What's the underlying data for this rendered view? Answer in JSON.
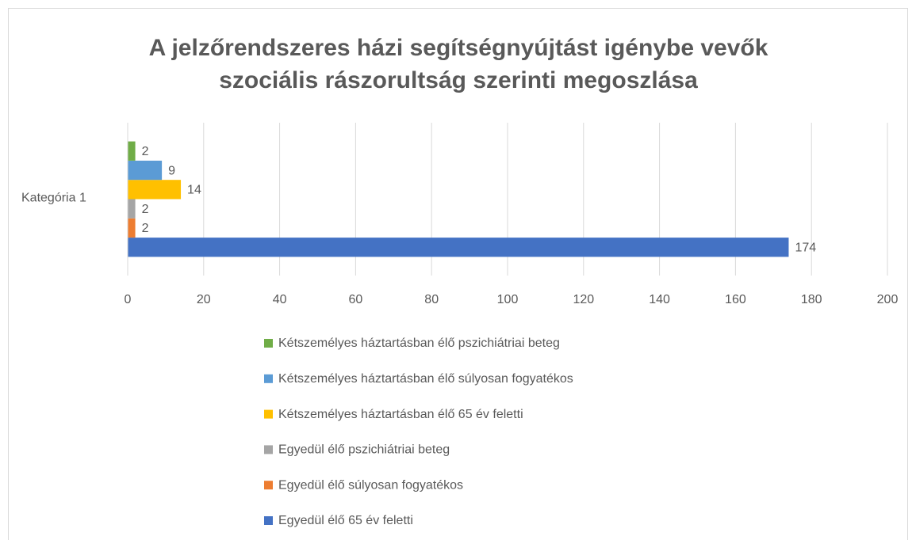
{
  "chart_data": {
    "type": "barh",
    "title": [
      "A jelzőrendszeres házi segítségnyújtást igénybe vevők",
      "szociális rászorultság szerinti megoszlása"
    ],
    "categories": [
      "Kategória 1"
    ],
    "series": [
      {
        "name": "Egyedül élő 65 év feletti",
        "color": "#4472c4",
        "values": [
          174
        ]
      },
      {
        "name": "Egyedül élő súlyosan fogyatékos",
        "color": "#ed7d31",
        "values": [
          2
        ]
      },
      {
        "name": "Egyedül élő pszichiátriai beteg",
        "color": "#a5a5a5",
        "values": [
          2
        ]
      },
      {
        "name": "Kétszemélyes háztartásban élő 65 év feletti",
        "color": "#ffc000",
        "values": [
          14
        ]
      },
      {
        "name": "Kétszemélyes háztartásban élő súlyosan fogyatékos",
        "color": "#5b9bd5",
        "values": [
          9
        ]
      },
      {
        "name": "Kétszemélyes háztartásban élő pszichiátriai beteg",
        "color": "#70ad47",
        "values": [
          2
        ]
      }
    ],
    "xlim": [
      0,
      200
    ],
    "xticks": [
      0,
      20,
      40,
      60,
      80,
      100,
      120,
      140,
      160,
      180,
      200
    ],
    "grid": true,
    "legend": "bottom",
    "data_labels": true
  }
}
